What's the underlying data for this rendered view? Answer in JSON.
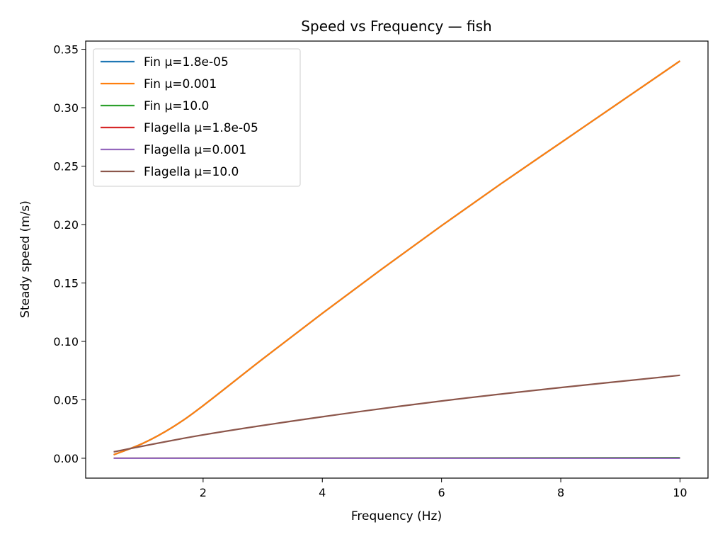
{
  "chart_data": {
    "type": "line",
    "title": "Speed vs Frequency — fish",
    "xlabel": "Frequency (Hz)",
    "ylabel": "Steady speed (m/s)",
    "xlim": [
      0.03,
      10.47
    ],
    "ylim": [
      -0.017,
      0.357
    ],
    "xticks": [
      2,
      4,
      6,
      8,
      10
    ],
    "xtick_labels": [
      "2",
      "4",
      "6",
      "8",
      "10"
    ],
    "yticks": [
      0.0,
      0.05,
      0.1,
      0.15,
      0.2,
      0.25,
      0.3,
      0.35
    ],
    "ytick_labels": [
      "0.00",
      "0.05",
      "0.10",
      "0.15",
      "0.20",
      "0.25",
      "0.30",
      "0.35"
    ],
    "grid": false,
    "legend_position": "upper-left",
    "series": [
      {
        "name": "Fin μ=1.8e-05",
        "color": "#1f77b4",
        "x": [
          0.5,
          1.0,
          1.5,
          2.0,
          3.0,
          4.0,
          5.0,
          6.0,
          7.0,
          8.0,
          9.0,
          10.0
        ],
        "y": [
          0.003,
          0.013,
          0.027,
          0.045,
          0.085,
          0.124,
          0.162,
          0.199,
          0.235,
          0.27,
          0.305,
          0.34
        ]
      },
      {
        "name": "Fin μ=0.001",
        "color": "#ff7f0e",
        "x": [
          0.5,
          1.0,
          1.5,
          2.0,
          3.0,
          4.0,
          5.0,
          6.0,
          7.0,
          8.0,
          9.0,
          10.0
        ],
        "y": [
          0.003,
          0.013,
          0.027,
          0.045,
          0.085,
          0.124,
          0.162,
          0.199,
          0.235,
          0.27,
          0.305,
          0.34
        ]
      },
      {
        "name": "Fin μ=10.0",
        "color": "#2ca02c",
        "x": [
          0.5,
          10.0
        ],
        "y": [
          0.0,
          0.0005
        ]
      },
      {
        "name": "Flagella μ=1.8e-05",
        "color": "#d62728",
        "x": [
          0.5,
          10.0
        ],
        "y": [
          0.0,
          0.0
        ]
      },
      {
        "name": "Flagella μ=0.001",
        "color": "#9467bd",
        "x": [
          0.5,
          10.0
        ],
        "y": [
          0.0,
          0.0
        ]
      },
      {
        "name": "Flagella μ=10.0",
        "color": "#8c564b",
        "x": [
          0.5,
          2.0,
          4.0,
          6.0,
          8.0,
          10.0
        ],
        "y": [
          0.0055,
          0.02,
          0.0355,
          0.049,
          0.0605,
          0.071
        ]
      }
    ]
  }
}
